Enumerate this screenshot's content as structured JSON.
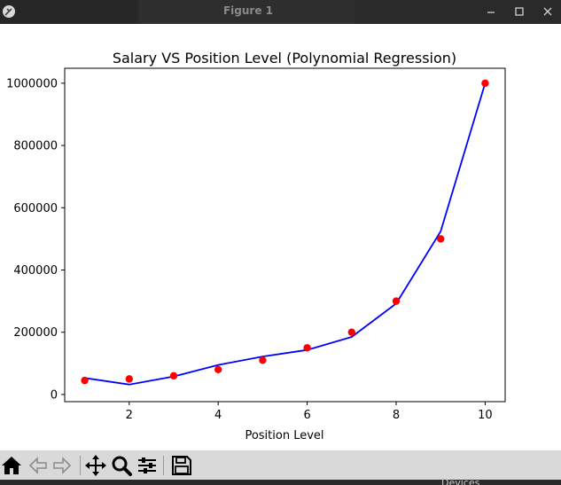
{
  "window": {
    "title": "Figure 1"
  },
  "bottom_text": "Devices",
  "chart_data": {
    "type": "line",
    "title": "Salary VS Position Level (Polynomial Regression)",
    "xlabel": "Position Level",
    "ylabel": "",
    "xlim": [
      0.55,
      10.45
    ],
    "ylim": [
      -23000,
      1048000
    ],
    "xticks": [
      2,
      4,
      6,
      8,
      10
    ],
    "yticks": [
      0,
      200000,
      400000,
      600000,
      800000,
      1000000
    ],
    "grid": false,
    "series": [
      {
        "kind": "scatter",
        "color": "#ff0000",
        "x": [
          1,
          2,
          3,
          4,
          5,
          6,
          7,
          8,
          9,
          10
        ],
        "y": [
          45000,
          50000,
          60000,
          80000,
          110000,
          150000,
          200000,
          300000,
          500000,
          1000000
        ]
      },
      {
        "kind": "line",
        "color": "#0000ff",
        "x": [
          1,
          2,
          3,
          4,
          5,
          6,
          7,
          8,
          9,
          10
        ],
        "y": [
          53000,
          32000,
          58000,
          95000,
          122000,
          143000,
          185000,
          292000,
          524000,
          1000000
        ]
      }
    ]
  },
  "toolbar": {
    "items": [
      {
        "name": "home-icon"
      },
      {
        "name": "back-arrow-icon"
      },
      {
        "name": "forward-arrow-icon"
      },
      {
        "name": "pan-move-icon"
      },
      {
        "name": "zoom-magnifier-icon"
      },
      {
        "name": "configure-subplots-icon"
      },
      {
        "name": "save-disk-icon"
      }
    ]
  }
}
